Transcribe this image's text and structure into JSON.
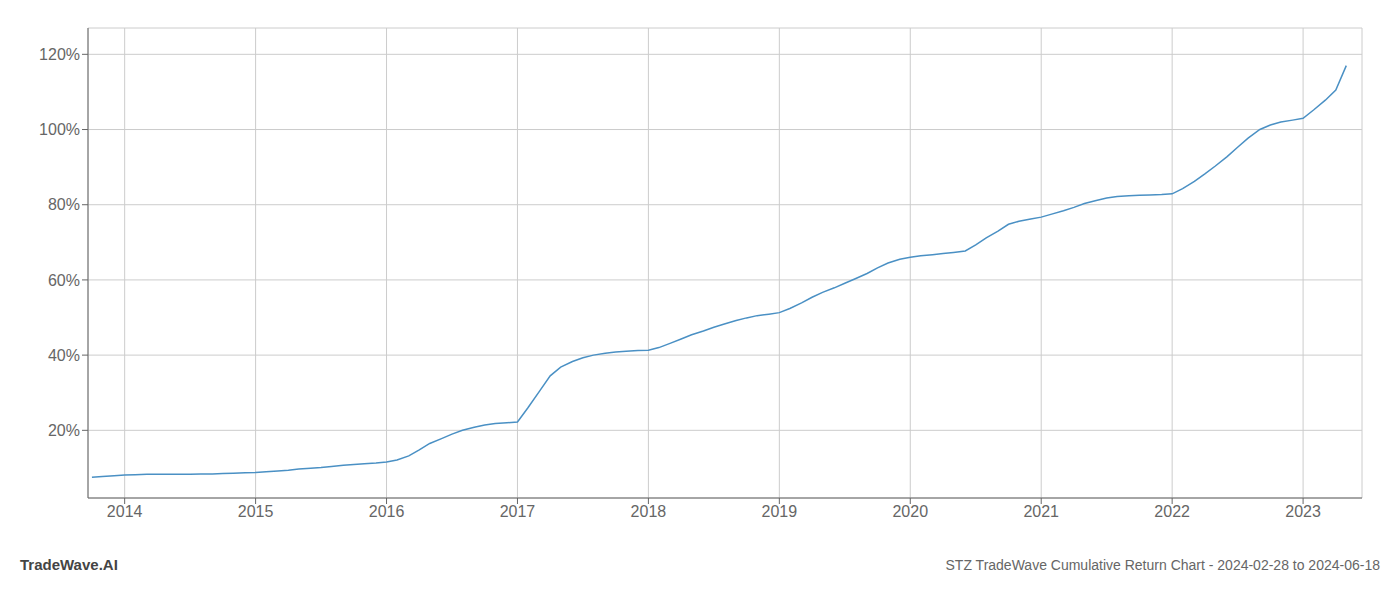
{
  "chart_data": {
    "type": "line",
    "title": "STZ TradeWave Cumulative Return Chart - 2024-02-28 to 2024-06-18",
    "annotations": [
      "TradeWave.AI"
    ],
    "color": "#4a90c4",
    "grid": true,
    "xlim": [
      2013.72,
      2023.45
    ],
    "ylim": [
      0.02,
      1.27
    ],
    "xticks": [
      2014,
      2015,
      2016,
      2017,
      2018,
      2019,
      2020,
      2021,
      2022,
      2023
    ],
    "yticks": [
      {
        "value": 0.2,
        "label": "20%"
      },
      {
        "value": 0.4,
        "label": "40%"
      },
      {
        "value": 0.6,
        "label": "60%"
      },
      {
        "value": 0.8,
        "label": "80%"
      },
      {
        "value": 1.0,
        "label": "100%"
      },
      {
        "value": 1.2,
        "label": "120%"
      }
    ],
    "x": [
      2013.75,
      2013.83,
      2013.92,
      2014.0,
      2014.08,
      2014.17,
      2014.25,
      2014.33,
      2014.42,
      2014.5,
      2014.58,
      2014.67,
      2014.75,
      2014.83,
      2014.92,
      2015.0,
      2015.08,
      2015.17,
      2015.25,
      2015.33,
      2015.42,
      2015.5,
      2015.58,
      2015.67,
      2015.75,
      2015.83,
      2015.92,
      2016.0,
      2016.08,
      2016.17,
      2016.25,
      2016.33,
      2016.42,
      2016.5,
      2016.58,
      2016.67,
      2016.75,
      2016.83,
      2016.92,
      2017.0,
      2017.08,
      2017.17,
      2017.25,
      2017.33,
      2017.42,
      2017.5,
      2017.58,
      2017.67,
      2017.75,
      2017.83,
      2017.92,
      2018.0,
      2018.08,
      2018.17,
      2018.25,
      2018.33,
      2018.42,
      2018.5,
      2018.58,
      2018.67,
      2018.75,
      2018.83,
      2018.92,
      2019.0,
      2019.08,
      2019.17,
      2019.25,
      2019.33,
      2019.42,
      2019.5,
      2019.58,
      2019.67,
      2019.75,
      2019.83,
      2019.92,
      2020.0,
      2020.08,
      2020.17,
      2020.25,
      2020.33,
      2020.42,
      2020.5,
      2020.58,
      2020.67,
      2020.75,
      2020.83,
      2020.92,
      2021.0,
      2021.08,
      2021.17,
      2021.25,
      2021.33,
      2021.42,
      2021.5,
      2021.58,
      2021.67,
      2021.75,
      2021.83,
      2021.92,
      2022.0,
      2022.08,
      2022.17,
      2022.25,
      2022.33,
      2022.42,
      2022.5,
      2022.58,
      2022.67,
      2022.75,
      2022.83,
      2022.92,
      2023.0,
      2023.08,
      2023.17,
      2023.25,
      2023.33
    ],
    "values": [
      0.075,
      0.077,
      0.079,
      0.081,
      0.082,
      0.083,
      0.083,
      0.083,
      0.083,
      0.083,
      0.084,
      0.084,
      0.085,
      0.086,
      0.087,
      0.088,
      0.09,
      0.092,
      0.094,
      0.097,
      0.099,
      0.101,
      0.104,
      0.107,
      0.109,
      0.111,
      0.113,
      0.116,
      0.121,
      0.132,
      0.148,
      0.165,
      0.178,
      0.19,
      0.2,
      0.208,
      0.214,
      0.218,
      0.22,
      0.222,
      0.26,
      0.305,
      0.345,
      0.368,
      0.383,
      0.393,
      0.4,
      0.405,
      0.408,
      0.41,
      0.412,
      0.413,
      0.42,
      0.432,
      0.443,
      0.454,
      0.464,
      0.474,
      0.483,
      0.492,
      0.499,
      0.505,
      0.509,
      0.513,
      0.524,
      0.539,
      0.554,
      0.567,
      0.579,
      0.591,
      0.603,
      0.617,
      0.632,
      0.645,
      0.655,
      0.66,
      0.664,
      0.667,
      0.67,
      0.673,
      0.677,
      0.693,
      0.712,
      0.73,
      0.748,
      0.756,
      0.762,
      0.767,
      0.775,
      0.784,
      0.793,
      0.803,
      0.811,
      0.818,
      0.822,
      0.824,
      0.825,
      0.826,
      0.827,
      0.829,
      0.843,
      0.862,
      0.882,
      0.903,
      0.928,
      0.953,
      0.977,
      1.0,
      1.012,
      1.02,
      1.025,
      1.03,
      1.052,
      1.078,
      1.105,
      1.17
    ]
  }
}
